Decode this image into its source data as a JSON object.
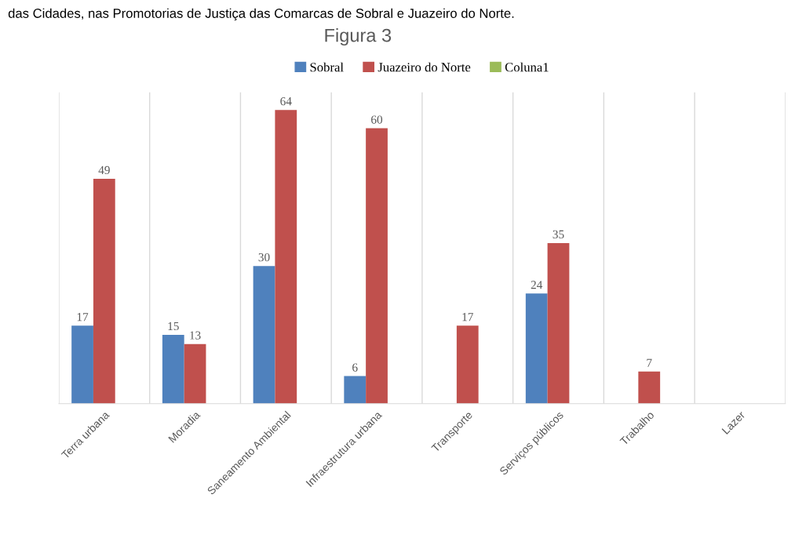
{
  "chart_data": {
    "type": "bar",
    "title": "Figura 3",
    "annotations": [
      "das Cidades, nas Promotorias de Justiça das Comarcas de Sobral e Juazeiro do Norte."
    ],
    "categories": [
      "Terra urbana",
      "Moradia",
      "Saneamento Ambiental",
      "Infraestrutura urbana",
      "Transporte",
      "Serviços públicos",
      "Trabalho",
      "Lazer"
    ],
    "series": [
      {
        "name": "Sobral",
        "color": "#4f81bd",
        "values": [
          17,
          15,
          30,
          6,
          null,
          24,
          null,
          null
        ]
      },
      {
        "name": "Juazeiro do Norte",
        "color": "#c0504d",
        "values": [
          49,
          13,
          64,
          60,
          17,
          35,
          7,
          null
        ]
      },
      {
        "name": "Coluna1",
        "color": "#9bbb59",
        "values": [
          null,
          null,
          null,
          null,
          null,
          null,
          null,
          null
        ]
      }
    ],
    "data_labels": true,
    "grid": "x",
    "legend": "top",
    "tick_labels": "x"
  }
}
